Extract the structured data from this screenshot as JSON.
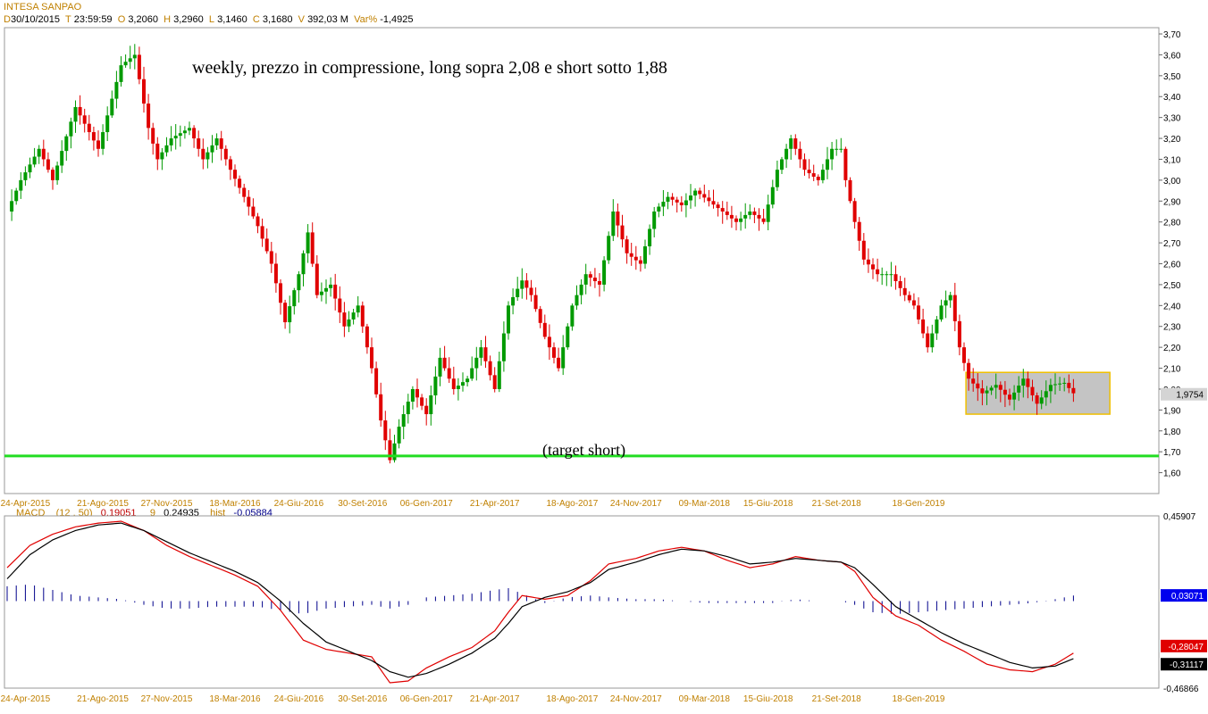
{
  "header": {
    "title": "INTESA SANPAO",
    "date_label": "D",
    "date": "30/10/2015",
    "time_label": "T",
    "time": "23:59:59",
    "open_label": "O",
    "open": "3,2060",
    "high_label": "H",
    "high": "3,2960",
    "low_label": "L",
    "low": "3,1460",
    "close_label": "C",
    "close": "3,1680",
    "volume_label": "V",
    "volume": "392,03 M",
    "var_label": "Var%",
    "var": "-1,4925"
  },
  "colors": {
    "up": "#009a00",
    "down": "#e00000",
    "target_line": "#22dd22",
    "box_fill": "#c4c4c4",
    "box_border": "#f0c000",
    "macd_line": "#e00000",
    "signal_line": "#000000",
    "hist": "#00008b",
    "date_text": "#c08000"
  },
  "chart_data": [
    {
      "type": "candlestick",
      "title": "INTESA SANPAO",
      "period": "weekly",
      "ylim": [
        1.5,
        3.73
      ],
      "y_ticks": [
        "3,70",
        "3,60",
        "3,50",
        "3,40",
        "3,30",
        "3,20",
        "3,10",
        "3,00",
        "2,90",
        "2,80",
        "2,70",
        "2,60",
        "2,50",
        "2,40",
        "2,30",
        "2,20",
        "2,10",
        "2,00",
        "1,90",
        "1,80",
        "1,70",
        "1,60"
      ],
      "x_ticks": [
        "24-Apr-2015",
        "21-Ago-2015",
        "27-Nov-2015",
        "18-Mar-2016",
        "24-Giu-2016",
        "30-Set-2016",
        "06-Gen-2017",
        "21-Apr-2017",
        "18-Ago-2017",
        "24-Nov-2017",
        "09-Mar-2018",
        "15-Giu-2018",
        "21-Set-2018",
        "18-Gen-2019"
      ],
      "last_price": "1,9754",
      "annotations": [
        "weekly, prezzo in compressione, long sopra 2,08 e short sotto 1,88",
        "(target short)"
      ],
      "target_line": 1.68,
      "range_box": {
        "high": 2.08,
        "low": 1.88
      },
      "close_anchors": [
        [
          0,
          2.85
        ],
        [
          3,
          3.0
        ],
        [
          7,
          3.15
        ],
        [
          10,
          3.0
        ],
        [
          15,
          3.35
        ],
        [
          20,
          3.15
        ],
        [
          25,
          3.55
        ],
        [
          28,
          3.6
        ],
        [
          31,
          3.25
        ],
        [
          33,
          3.1
        ],
        [
          36,
          3.2
        ],
        [
          40,
          3.25
        ],
        [
          43,
          3.1
        ],
        [
          46,
          3.2
        ],
        [
          49,
          3.05
        ],
        [
          52,
          2.92
        ],
        [
          55,
          2.78
        ],
        [
          58,
          2.6
        ],
        [
          61,
          2.32
        ],
        [
          64,
          2.55
        ],
        [
          66,
          2.75
        ],
        [
          68,
          2.45
        ],
        [
          71,
          2.5
        ],
        [
          74,
          2.3
        ],
        [
          77,
          2.4
        ],
        [
          80,
          2.1
        ],
        [
          82,
          1.85
        ],
        [
          84,
          1.66
        ],
        [
          86,
          1.82
        ],
        [
          89,
          2.0
        ],
        [
          92,
          1.88
        ],
        [
          95,
          2.15
        ],
        [
          98,
          2.0
        ],
        [
          101,
          2.05
        ],
        [
          104,
          2.2
        ],
        [
          107,
          2.0
        ],
        [
          110,
          2.4
        ],
        [
          113,
          2.52
        ],
        [
          115,
          2.45
        ],
        [
          118,
          2.25
        ],
        [
          121,
          2.1
        ],
        [
          124,
          2.4
        ],
        [
          127,
          2.55
        ],
        [
          130,
          2.5
        ],
        [
          133,
          2.85
        ],
        [
          136,
          2.65
        ],
        [
          139,
          2.6
        ],
        [
          142,
          2.85
        ],
        [
          145,
          2.92
        ],
        [
          148,
          2.88
        ],
        [
          151,
          2.95
        ],
        [
          154,
          2.9
        ],
        [
          157,
          2.85
        ],
        [
          160,
          2.8
        ],
        [
          163,
          2.85
        ],
        [
          166,
          2.8
        ],
        [
          169,
          3.05
        ],
        [
          172,
          3.2
        ],
        [
          175,
          3.05
        ],
        [
          178,
          3.0
        ],
        [
          181,
          3.15
        ],
        [
          183,
          3.15
        ],
        [
          184,
          3.0
        ],
        [
          186,
          2.8
        ],
        [
          188,
          2.62
        ],
        [
          191,
          2.55
        ],
        [
          194,
          2.55
        ],
        [
          197,
          2.45
        ],
        [
          199,
          2.4
        ],
        [
          202,
          2.2
        ],
        [
          205,
          2.4
        ],
        [
          207,
          2.45
        ],
        [
          209,
          2.2
        ],
        [
          211,
          2.05
        ],
        [
          214,
          1.98
        ],
        [
          217,
          2.02
        ],
        [
          220,
          1.95
        ],
        [
          223,
          2.05
        ],
        [
          226,
          1.93
        ],
        [
          229,
          2.02
        ],
        [
          232,
          2.03
        ],
        [
          234,
          1.98
        ]
      ]
    },
    {
      "type": "line",
      "title": "MACD",
      "params": "(12 , 50)",
      "macd_value": "0,19051",
      "signal_period": "9",
      "signal_value": "0,24935",
      "hist_label": "hist",
      "hist_value": "-0,05884",
      "ylim": [
        -0.46866,
        0.45907
      ],
      "y_ticks": [
        "0,45907",
        "-0,46866"
      ],
      "value_labels": {
        "hist": "0,03071",
        "macd": "-0,28047",
        "signal": "-0,31117"
      },
      "series": [
        {
          "name": "MACD",
          "anchors": [
            [
              0,
              0.18
            ],
            [
              5,
              0.3
            ],
            [
              10,
              0.36
            ],
            [
              15,
              0.4
            ],
            [
              20,
              0.42
            ],
            [
              25,
              0.43
            ],
            [
              30,
              0.38
            ],
            [
              35,
              0.3
            ],
            [
              40,
              0.24
            ],
            [
              45,
              0.19
            ],
            [
              50,
              0.14
            ],
            [
              55,
              0.08
            ],
            [
              60,
              -0.05
            ],
            [
              65,
              -0.21
            ],
            [
              70,
              -0.26
            ],
            [
              75,
              -0.28
            ],
            [
              80,
              -0.3
            ],
            [
              84,
              -0.44
            ],
            [
              88,
              -0.43
            ],
            [
              92,
              -0.36
            ],
            [
              97,
              -0.3
            ],
            [
              102,
              -0.25
            ],
            [
              107,
              -0.16
            ],
            [
              110,
              -0.06
            ],
            [
              113,
              0.03
            ],
            [
              118,
              0.01
            ],
            [
              123,
              0.03
            ],
            [
              128,
              0.11
            ],
            [
              132,
              0.2
            ],
            [
              138,
              0.23
            ],
            [
              143,
              0.27
            ],
            [
              148,
              0.29
            ],
            [
              153,
              0.27
            ],
            [
              158,
              0.22
            ],
            [
              163,
              0.18
            ],
            [
              168,
              0.2
            ],
            [
              173,
              0.24
            ],
            [
              178,
              0.22
            ],
            [
              183,
              0.21
            ],
            [
              186,
              0.16
            ],
            [
              190,
              0.02
            ],
            [
              195,
              -0.08
            ],
            [
              200,
              -0.13
            ],
            [
              205,
              -0.21
            ],
            [
              210,
              -0.27
            ],
            [
              215,
              -0.34
            ],
            [
              220,
              -0.37
            ],
            [
              225,
              -0.38
            ],
            [
              230,
              -0.34
            ],
            [
              234,
              -0.28
            ]
          ]
        },
        {
          "name": "signal",
          "anchors": [
            [
              0,
              0.12
            ],
            [
              5,
              0.25
            ],
            [
              10,
              0.33
            ],
            [
              15,
              0.38
            ],
            [
              20,
              0.41
            ],
            [
              25,
              0.42
            ],
            [
              30,
              0.38
            ],
            [
              35,
              0.32
            ],
            [
              40,
              0.26
            ],
            [
              45,
              0.21
            ],
            [
              50,
              0.16
            ],
            [
              55,
              0.1
            ],
            [
              60,
              0.0
            ],
            [
              65,
              -0.12
            ],
            [
              70,
              -0.22
            ],
            [
              75,
              -0.27
            ],
            [
              80,
              -0.32
            ],
            [
              84,
              -0.38
            ],
            [
              88,
              -0.41
            ],
            [
              92,
              -0.39
            ],
            [
              97,
              -0.34
            ],
            [
              102,
              -0.28
            ],
            [
              107,
              -0.2
            ],
            [
              110,
              -0.12
            ],
            [
              113,
              -0.03
            ],
            [
              118,
              0.02
            ],
            [
              123,
              0.05
            ],
            [
              128,
              0.1
            ],
            [
              132,
              0.17
            ],
            [
              138,
              0.21
            ],
            [
              143,
              0.25
            ],
            [
              148,
              0.28
            ],
            [
              153,
              0.27
            ],
            [
              158,
              0.24
            ],
            [
              163,
              0.2
            ],
            [
              168,
              0.21
            ],
            [
              173,
              0.23
            ],
            [
              178,
              0.22
            ],
            [
              183,
              0.21
            ],
            [
              186,
              0.18
            ],
            [
              190,
              0.09
            ],
            [
              195,
              -0.03
            ],
            [
              200,
              -0.1
            ],
            [
              205,
              -0.17
            ],
            [
              210,
              -0.23
            ],
            [
              215,
              -0.28
            ],
            [
              220,
              -0.33
            ],
            [
              225,
              -0.36
            ],
            [
              230,
              -0.35
            ],
            [
              234,
              -0.31
            ]
          ]
        }
      ],
      "hist_anchors": [
        [
          0,
          0.08
        ],
        [
          5,
          0.09
        ],
        [
          10,
          0.06
        ],
        [
          15,
          0.03
        ],
        [
          20,
          0.02
        ],
        [
          25,
          0.01
        ],
        [
          30,
          -0.02
        ],
        [
          35,
          -0.04
        ],
        [
          40,
          -0.04
        ],
        [
          45,
          -0.03
        ],
        [
          50,
          -0.03
        ],
        [
          55,
          -0.03
        ],
        [
          60,
          -0.05
        ],
        [
          65,
          -0.07
        ],
        [
          70,
          -0.04
        ],
        [
          75,
          -0.03
        ],
        [
          80,
          -0.02
        ],
        [
          84,
          -0.04
        ],
        [
          88,
          -0.02
        ],
        [
          92,
          0.02
        ],
        [
          97,
          0.03
        ],
        [
          102,
          0.04
        ],
        [
          107,
          0.06
        ],
        [
          110,
          0.07
        ],
        [
          113,
          0.04
        ],
        [
          118,
          -0.01
        ],
        [
          123,
          0.02
        ],
        [
          128,
          0.03
        ],
        [
          132,
          0.02
        ],
        [
          138,
          0.01
        ],
        [
          143,
          0.01
        ],
        [
          148,
          0.0
        ],
        [
          153,
          -0.01
        ],
        [
          158,
          -0.01
        ],
        [
          163,
          -0.01
        ],
        [
          168,
          -0.01
        ],
        [
          173,
          0.01
        ],
        [
          178,
          0.0
        ],
        [
          183,
          0.0
        ],
        [
          186,
          -0.02
        ],
        [
          190,
          -0.06
        ],
        [
          195,
          -0.07
        ],
        [
          200,
          -0.06
        ],
        [
          205,
          -0.05
        ],
        [
          210,
          -0.04
        ],
        [
          215,
          -0.03
        ],
        [
          220,
          -0.02
        ],
        [
          225,
          -0.01
        ],
        [
          230,
          0.01
        ],
        [
          234,
          0.03
        ]
      ]
    }
  ]
}
